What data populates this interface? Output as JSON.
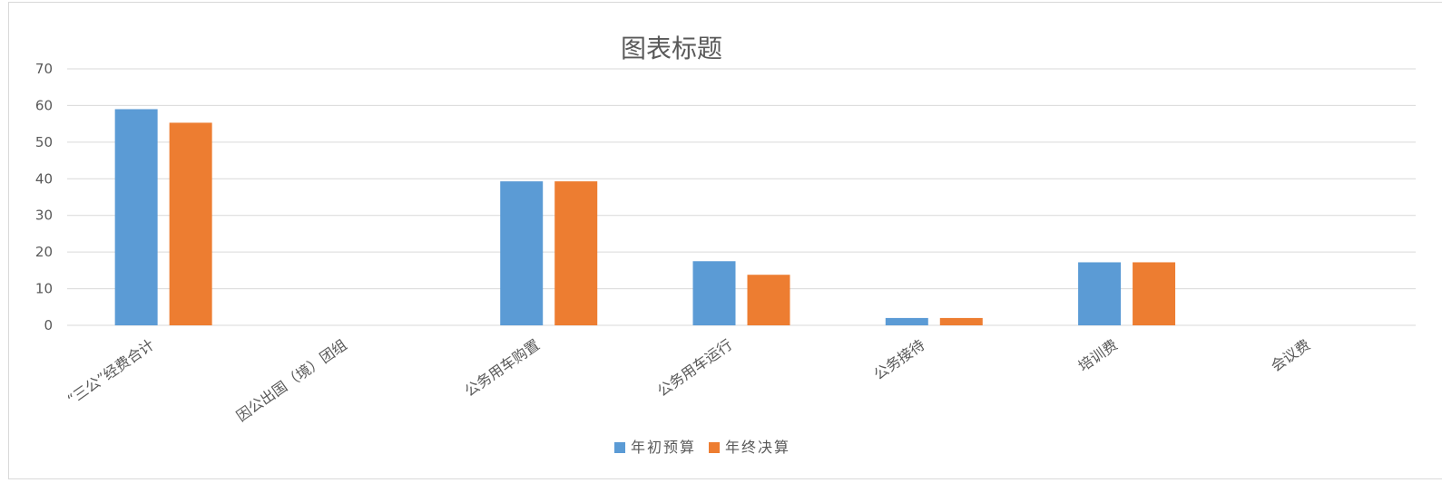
{
  "chart_data": {
    "type": "bar",
    "title": "图表标题",
    "categories": [
      "“三公”经费合计",
      "因公出国（境）团组",
      "公务用车购置",
      "公务用车运行",
      "公务接待",
      "培训费",
      "会议费"
    ],
    "series": [
      {
        "name": "年初预算",
        "color": "#5b9bd5",
        "values": [
          59,
          0,
          39.3,
          17.5,
          2,
          17.2,
          0
        ]
      },
      {
        "name": "年终决算",
        "color": "#ed7d31",
        "values": [
          55.3,
          0,
          39.3,
          13.8,
          2,
          17.2,
          0
        ]
      }
    ],
    "ylim": [
      0,
      70
    ],
    "yticks": [
      0,
      10,
      20,
      30,
      40,
      50,
      60,
      70
    ],
    "grid": true,
    "legend": "bottom"
  }
}
